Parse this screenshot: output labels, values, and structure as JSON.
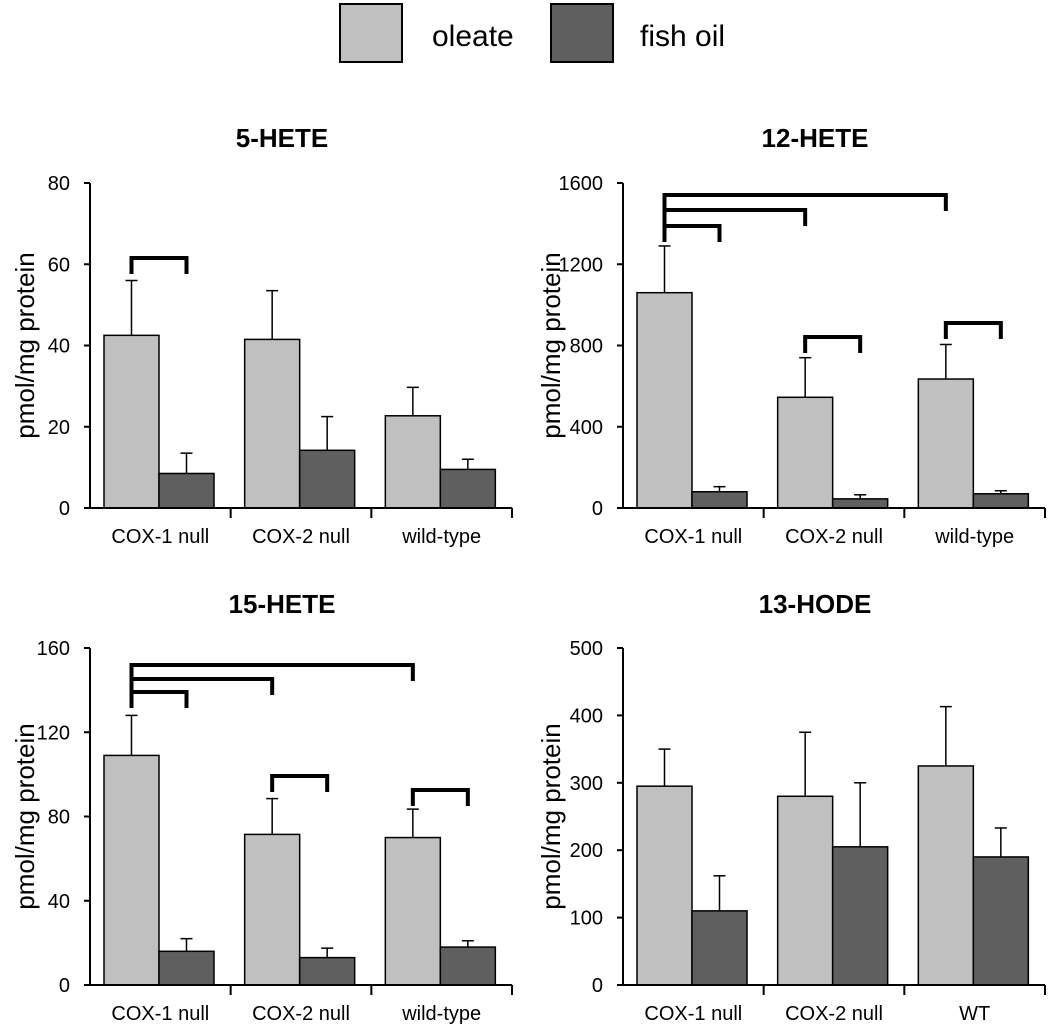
{
  "colors": {
    "oleate": "#c0c0c0",
    "fish_oil": "#5f5f5f",
    "outline": "#000000",
    "background": "#ffffff"
  },
  "legend": {
    "items": [
      {
        "label": "oleate",
        "series": "oleate"
      },
      {
        "label": "fish oil",
        "series": "fish_oil"
      }
    ]
  },
  "chart_data": [
    {
      "type": "bar",
      "title": "5-HETE",
      "ylabel": "pmol/mg protein",
      "xlabel": "",
      "categories": [
        "COX-1 null",
        "COX-2 null",
        "wild-type"
      ],
      "ylim": [
        0,
        80
      ],
      "yticks": [
        0,
        20,
        40,
        60,
        80
      ],
      "series": [
        {
          "name": "oleate",
          "values": [
            42.5,
            41.5,
            22.7
          ],
          "errors": [
            13.5,
            12.0,
            7.0
          ]
        },
        {
          "name": "fish oil",
          "values": [
            8.5,
            14.2,
            9.5
          ],
          "errors": [
            5.0,
            8.3,
            2.5
          ]
        }
      ],
      "brackets": [
        {
          "from": [
            0,
            "oleate"
          ],
          "to": [
            0,
            "fish oil"
          ]
        }
      ]
    },
    {
      "type": "bar",
      "title": "12-HETE",
      "ylabel": "pmol/mg protein",
      "xlabel": "",
      "categories": [
        "COX-1 null",
        "COX-2 null",
        "wild-type"
      ],
      "ylim": [
        0,
        1600
      ],
      "yticks": [
        0,
        400,
        800,
        1200,
        1600
      ],
      "series": [
        {
          "name": "oleate",
          "values": [
            1060,
            545,
            635
          ],
          "errors": [
            230,
            195,
            170
          ]
        },
        {
          "name": "fish oil",
          "values": [
            80,
            45,
            70
          ],
          "errors": [
            25,
            20,
            15
          ]
        }
      ],
      "brackets": [
        {
          "from": [
            0,
            "oleate"
          ],
          "to": [
            0,
            "fish oil"
          ]
        },
        {
          "from": [
            0,
            "oleate"
          ],
          "to": [
            1,
            "oleate"
          ]
        },
        {
          "from": [
            0,
            "oleate"
          ],
          "to": [
            2,
            "oleate"
          ]
        },
        {
          "from": [
            1,
            "oleate"
          ],
          "to": [
            1,
            "fish oil"
          ]
        },
        {
          "from": [
            2,
            "oleate"
          ],
          "to": [
            2,
            "fish oil"
          ]
        }
      ]
    },
    {
      "type": "bar",
      "title": "15-HETE",
      "ylabel": "pmol/mg protein",
      "xlabel": "",
      "categories": [
        "COX-1 null",
        "COX-2 null",
        "wild-type"
      ],
      "ylim": [
        0,
        160
      ],
      "yticks": [
        0,
        40,
        80,
        120,
        160
      ],
      "series": [
        {
          "name": "oleate",
          "values": [
            109,
            71.5,
            70
          ],
          "errors": [
            19,
            17,
            13.5
          ]
        },
        {
          "name": "fish oil",
          "values": [
            16,
            13,
            18
          ],
          "errors": [
            6,
            4.5,
            3
          ]
        }
      ],
      "brackets": [
        {
          "from": [
            0,
            "oleate"
          ],
          "to": [
            0,
            "fish oil"
          ]
        },
        {
          "from": [
            0,
            "oleate"
          ],
          "to": [
            1,
            "oleate"
          ]
        },
        {
          "from": [
            0,
            "oleate"
          ],
          "to": [
            2,
            "oleate"
          ]
        },
        {
          "from": [
            1,
            "oleate"
          ],
          "to": [
            1,
            "fish oil"
          ]
        },
        {
          "from": [
            2,
            "oleate"
          ],
          "to": [
            2,
            "fish oil"
          ]
        }
      ]
    },
    {
      "type": "bar",
      "title": "13-HODE",
      "ylabel": "pmol/mg protein",
      "xlabel": "",
      "categories": [
        "COX-1 null",
        "COX-2 null",
        "WT"
      ],
      "ylim": [
        0,
        500
      ],
      "yticks": [
        0,
        100,
        200,
        300,
        400,
        500
      ],
      "series": [
        {
          "name": "oleate",
          "values": [
            295,
            280,
            325
          ],
          "errors": [
            55,
            95,
            88
          ]
        },
        {
          "name": "fish oil",
          "values": [
            110,
            205,
            190
          ],
          "errors": [
            52,
            95,
            43
          ]
        }
      ],
      "brackets": []
    }
  ]
}
